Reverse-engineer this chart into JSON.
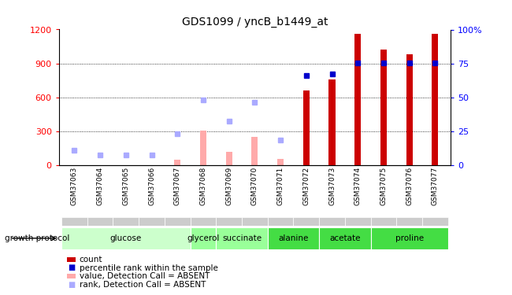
{
  "title": "GDS1099 / yncB_b1449_at",
  "samples": [
    "GSM37063",
    "GSM37064",
    "GSM37065",
    "GSM37066",
    "GSM37067",
    "GSM37068",
    "GSM37069",
    "GSM37070",
    "GSM37071",
    "GSM37072",
    "GSM37073",
    "GSM37074",
    "GSM37075",
    "GSM37076",
    "GSM37077"
  ],
  "count_values": [
    0,
    0,
    0,
    0,
    0,
    0,
    0,
    0,
    0,
    660,
    760,
    1160,
    1020,
    980,
    1160
  ],
  "rank_values": [
    null,
    null,
    null,
    null,
    null,
    null,
    null,
    null,
    null,
    790,
    810,
    905,
    905,
    905,
    905
  ],
  "absent_value_values": [
    null,
    null,
    null,
    null,
    50,
    305,
    120,
    250,
    55,
    null,
    null,
    null,
    null,
    null,
    null
  ],
  "absent_rank_values": [
    130,
    90,
    90,
    90,
    280,
    580,
    390,
    560,
    220,
    null,
    null,
    null,
    null,
    null,
    null
  ],
  "ylim_left": [
    0,
    1200
  ],
  "ylim_right": [
    0,
    100
  ],
  "yticks_left": [
    0,
    300,
    600,
    900,
    1200
  ],
  "yticks_right": [
    0,
    25,
    50,
    75,
    100
  ],
  "count_color": "#cc0000",
  "rank_color": "#0000cc",
  "absent_value_color": "#ffaaaa",
  "absent_rank_color": "#aaaaff",
  "grid_lines": [
    300,
    600,
    900
  ],
  "group_row_bg": "#cccccc",
  "groups": [
    {
      "label": "glucose",
      "start": 0,
      "end": 4,
      "color": "#ccffcc"
    },
    {
      "label": "glycerol",
      "start": 5,
      "end": 5,
      "color": "#99ff99"
    },
    {
      "label": "succinate",
      "start": 6,
      "end": 7,
      "color": "#99ff99"
    },
    {
      "label": "alanine",
      "start": 8,
      "end": 9,
      "color": "#44dd44"
    },
    {
      "label": "acetate",
      "start": 10,
      "end": 11,
      "color": "#44dd44"
    },
    {
      "label": "proline",
      "start": 12,
      "end": 14,
      "color": "#44dd44"
    }
  ],
  "growth_protocol_label": "growth protocol",
  "legend_items": [
    {
      "label": "count",
      "color": "#cc0000",
      "type": "bar"
    },
    {
      "label": "percentile rank within the sample",
      "color": "#0000cc",
      "type": "square"
    },
    {
      "label": "value, Detection Call = ABSENT",
      "color": "#ffaaaa",
      "type": "bar"
    },
    {
      "label": "rank, Detection Call = ABSENT",
      "color": "#aaaaff",
      "type": "square"
    }
  ]
}
